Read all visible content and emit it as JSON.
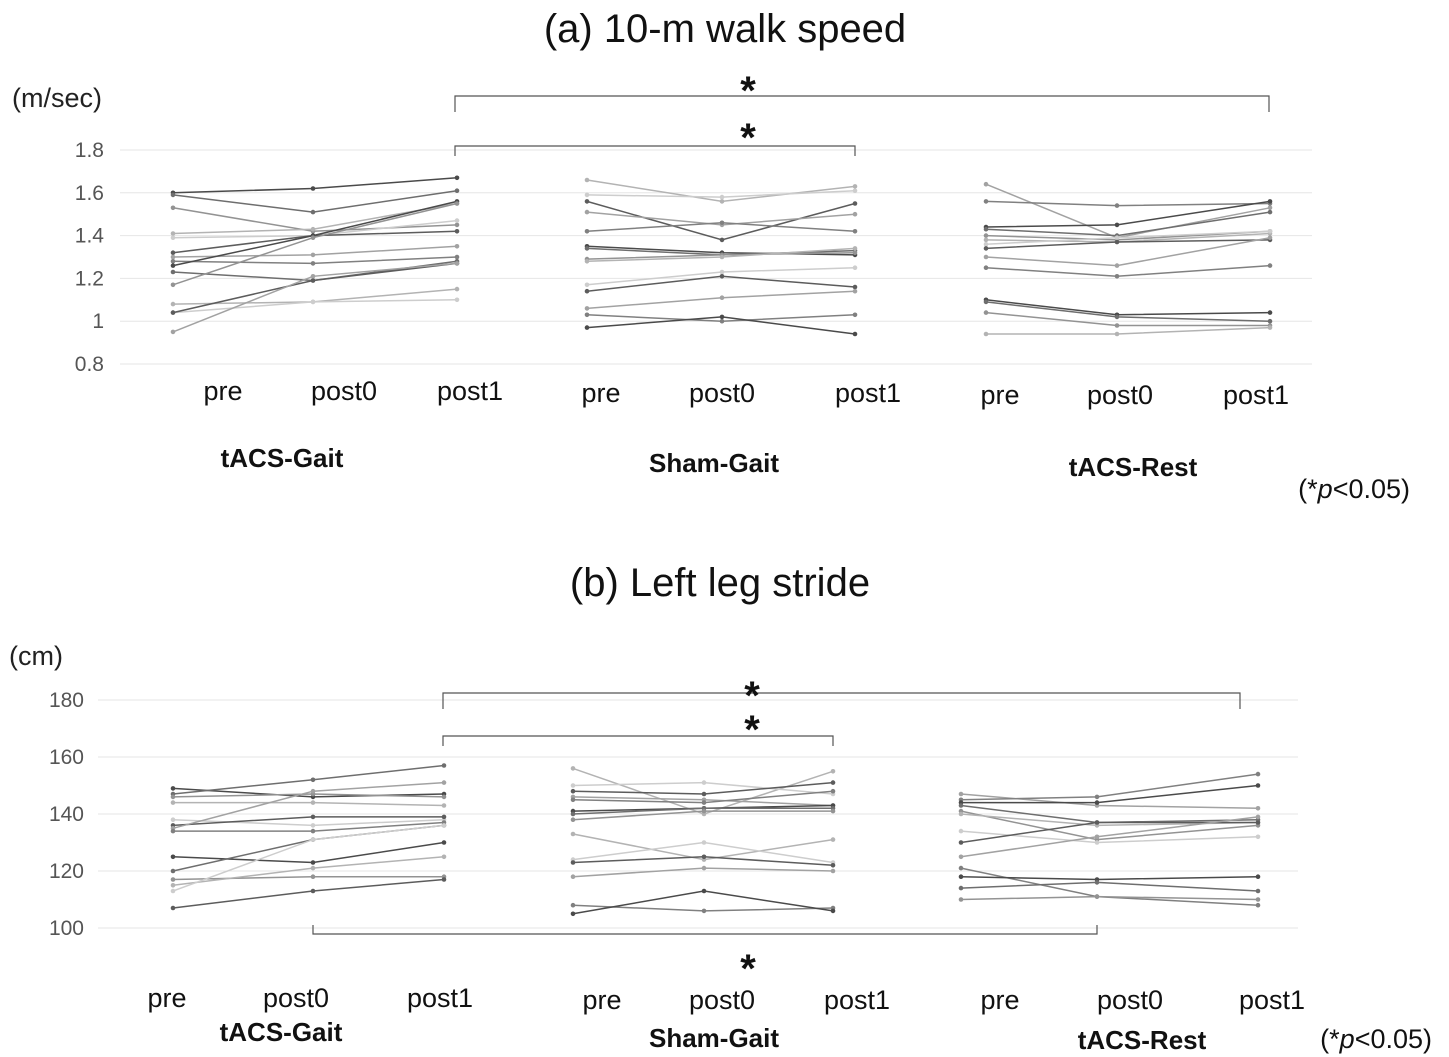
{
  "significance_note": {
    "prefix": "(*",
    "p": "p",
    "suffix": "<0.05)"
  },
  "chart_data": [
    {
      "type": "line",
      "title": "(a) 10-m walk speed",
      "ylabel": "(m/sec)",
      "ylim": [
        0.8,
        1.8
      ],
      "yticks": [
        "1.8",
        "1.6",
        "1.4",
        "1.2",
        "1",
        "0.8"
      ],
      "grid": true,
      "groups": [
        {
          "name": "tACS-Gait",
          "timepoints": [
            "pre",
            "post0",
            "post1"
          ],
          "subjects": [
            [
              1.6,
              1.62,
              1.67
            ],
            [
              1.59,
              1.51,
              1.61
            ],
            [
              1.53,
              1.42,
              1.45
            ],
            [
              1.41,
              1.43,
              1.55
            ],
            [
              1.39,
              1.4,
              1.47
            ],
            [
              1.32,
              1.4,
              1.42
            ],
            [
              1.3,
              1.31,
              1.35
            ],
            [
              1.28,
              1.27,
              1.3
            ],
            [
              1.26,
              1.4,
              1.56
            ],
            [
              1.23,
              1.19,
              1.28
            ],
            [
              1.17,
              1.39,
              1.55
            ],
            [
              1.08,
              1.09,
              1.15
            ],
            [
              1.04,
              1.09,
              1.1
            ],
            [
              1.04,
              1.19,
              1.27
            ],
            [
              0.95,
              1.21,
              1.27
            ]
          ]
        },
        {
          "name": "Sham-Gait",
          "timepoints": [
            "pre",
            "post0",
            "post1"
          ],
          "subjects": [
            [
              1.66,
              1.56,
              1.63
            ],
            [
              1.59,
              1.58,
              1.61
            ],
            [
              1.56,
              1.38,
              1.55
            ],
            [
              1.51,
              1.45,
              1.5
            ],
            [
              1.42,
              1.46,
              1.42
            ],
            [
              1.35,
              1.32,
              1.31
            ],
            [
              1.34,
              1.31,
              1.33
            ],
            [
              1.29,
              1.31,
              1.32
            ],
            [
              1.28,
              1.3,
              1.34
            ],
            [
              1.17,
              1.23,
              1.25
            ],
            [
              1.14,
              1.21,
              1.16
            ],
            [
              1.06,
              1.11,
              1.14
            ],
            [
              1.03,
              1.0,
              1.03
            ],
            [
              0.97,
              1.02,
              0.94
            ]
          ]
        },
        {
          "name": "tACS-Rest",
          "timepoints": [
            "pre",
            "post0",
            "post1"
          ],
          "subjects": [
            [
              1.64,
              1.39,
              1.53
            ],
            [
              1.56,
              1.54,
              1.55
            ],
            [
              1.44,
              1.45,
              1.56
            ],
            [
              1.43,
              1.4,
              1.51
            ],
            [
              1.4,
              1.38,
              1.42
            ],
            [
              1.38,
              1.37,
              1.41
            ],
            [
              1.36,
              1.39,
              1.42
            ],
            [
              1.34,
              1.37,
              1.38
            ],
            [
              1.3,
              1.26,
              1.39
            ],
            [
              1.25,
              1.21,
              1.26
            ],
            [
              1.1,
              1.03,
              1.04
            ],
            [
              1.09,
              1.02,
              1.0
            ],
            [
              1.04,
              0.98,
              0.98
            ],
            [
              0.94,
              0.94,
              0.97
            ]
          ]
        }
      ],
      "significance": [
        {
          "from": "tACS-Gait post1",
          "to": "tACS-Rest post1",
          "label": "*"
        },
        {
          "from": "tACS-Gait post1",
          "to": "Sham-Gait post1",
          "label": "*"
        }
      ]
    },
    {
      "type": "line",
      "title": "(b) Left leg stride",
      "ylabel": "(cm)",
      "ylim": [
        100,
        180
      ],
      "yticks": [
        "180",
        "160",
        "140",
        "120",
        "100"
      ],
      "grid": true,
      "groups": [
        {
          "name": "tACS-Gait",
          "timepoints": [
            "pre",
            "post0",
            "post1"
          ],
          "subjects": [
            [
              149,
              146,
              147
            ],
            [
              147,
              152,
              157
            ],
            [
              146,
              147,
              146
            ],
            [
              144,
              144,
              143
            ],
            [
              138,
              136,
              138
            ],
            [
              136,
              139,
              139
            ],
            [
              135,
              148,
              151
            ],
            [
              134,
              134,
              137
            ],
            [
              125,
              123,
              130
            ],
            [
              120,
              131,
              136
            ],
            [
              117,
              118,
              118
            ],
            [
              115,
              121,
              125
            ],
            [
              113,
              131,
              136
            ],
            [
              107,
              113,
              117
            ]
          ]
        },
        {
          "name": "Sham-Gait",
          "timepoints": [
            "pre",
            "post0",
            "post1"
          ],
          "subjects": [
            [
              156,
              140,
              155
            ],
            [
              150,
              151,
              147
            ],
            [
              148,
              147,
              151
            ],
            [
              146,
              145,
              143
            ],
            [
              145,
              144,
              148
            ],
            [
              141,
              142,
              143
            ],
            [
              140,
              142,
              142
            ],
            [
              138,
              141,
              141
            ],
            [
              133,
              124,
              131
            ],
            [
              124,
              130,
              123
            ],
            [
              123,
              125,
              122
            ],
            [
              118,
              121,
              120
            ],
            [
              108,
              106,
              107
            ],
            [
              105,
              113,
              106
            ]
          ]
        },
        {
          "name": "tACS-Rest",
          "timepoints": [
            "pre",
            "post0",
            "post1"
          ],
          "subjects": [
            [
              147,
              143,
              142
            ],
            [
              145,
              146,
              154
            ],
            [
              144,
              144,
              150
            ],
            [
              143,
              137,
              138
            ],
            [
              141,
              131,
              136
            ],
            [
              140,
              136,
              137
            ],
            [
              134,
              130,
              132
            ],
            [
              130,
              137,
              137
            ],
            [
              125,
              132,
              139
            ],
            [
              121,
              111,
              108
            ],
            [
              118,
              117,
              118
            ],
            [
              114,
              116,
              113
            ],
            [
              110,
              111,
              110
            ]
          ]
        }
      ],
      "significance": [
        {
          "from": "tACS-Gait post1",
          "to": "tACS-Rest post1",
          "label": "*"
        },
        {
          "from": "tACS-Gait post1",
          "to": "Sham-Gait post1",
          "label": "*"
        },
        {
          "from": "tACS-Gait post0",
          "to": "tACS-Rest post0",
          "label": "*"
        }
      ]
    }
  ]
}
